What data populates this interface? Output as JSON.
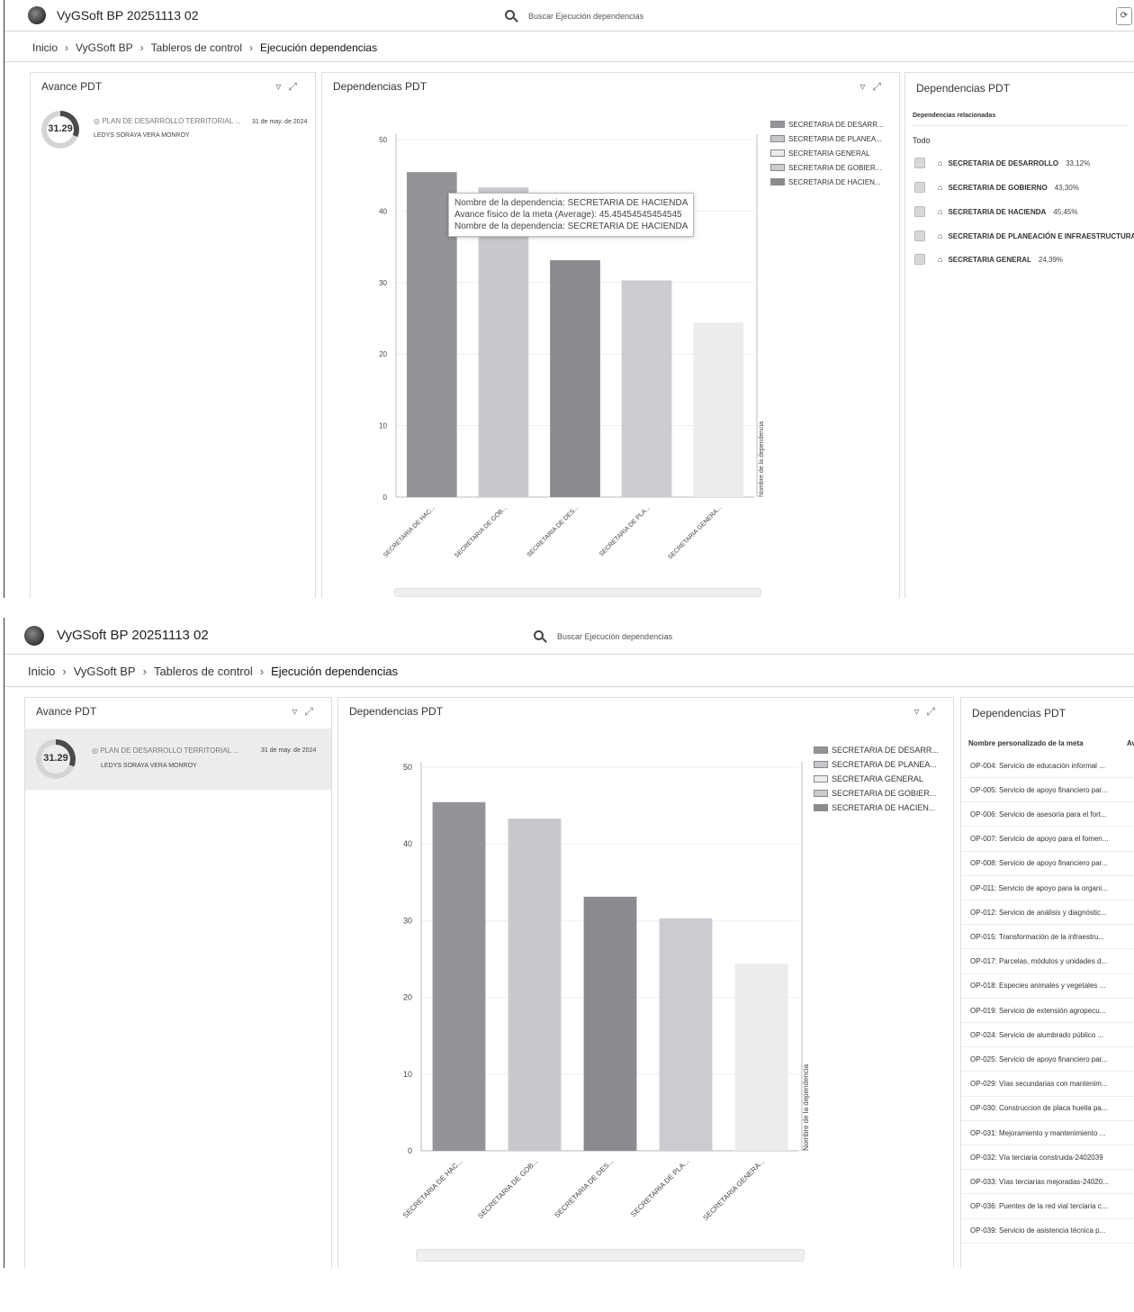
{
  "app": {
    "title": "VyGSoft BP 20251113 02"
  },
  "search": {
    "placeholder": "Buscar Ejecución dependencias"
  },
  "breadcrumb": [
    "Inicio",
    "VyGSoft BP",
    "Tableros de control",
    "Ejecución dependencias"
  ],
  "avance": {
    "title": "Avance PDT",
    "percent": "31.29",
    "percent_value": 31.29,
    "plan": "PLAN DE DESARROLLO TERRITORIAL ...",
    "date": "31 de may. de 2024",
    "person": "LEDYS SORAYA VERA MONROY"
  },
  "chart_panel": {
    "title": "Dependencias PDT"
  },
  "chart_data": {
    "type": "bar",
    "categories": [
      "SECRETARIA DE HAC...",
      "SECRETARIA DE GOB...",
      "SECRETARIA DE DES...",
      "SECRETARIA DE PLA...",
      "SECRETARIA GENERA..."
    ],
    "values": [
      45.45,
      43.3,
      33.12,
      30.3,
      24.39
    ],
    "ylim": [
      0,
      50
    ],
    "yticks": [
      0,
      10,
      20,
      30,
      40,
      50
    ],
    "xlabel": "",
    "ylabel": "Nombre de la dependencia",
    "legend": [
      "SECRETARIA DE DESARR...",
      "SECRETARIA DE PLANEA...",
      "SECRETARIA GENERAL",
      "SECRETARIA DE GOBIER...",
      "SECRETARIA DE HACIEN..."
    ],
    "legend_position": "top-right",
    "colors": [
      "#959397",
      "#c9c8cc",
      "#8c8a8e",
      "#cccbcf",
      "#ececef"
    ],
    "legend_colors": [
      "#959397",
      "#c7c6ca",
      "#ececef",
      "#cccbcf",
      "#8c8a8e"
    ]
  },
  "tooltip": {
    "line1": "Nombre de la dependencia: SECRETARIA DE HACIENDA",
    "line2": "Avance físico de la meta (Average): 45.45454545454545",
    "line3": "Nombre de la dependencia: SECRETARIA DE HACIENDA"
  },
  "dependencias": {
    "title": "Dependencias PDT",
    "related_label": "Dependencias relacionadas",
    "all_label": "Todo",
    "items": [
      {
        "name": "SECRETARIA DE DESARROLLO",
        "pct": "33,12%"
      },
      {
        "name": "SECRETARIA DE GOBIERNO",
        "pct": "43,30%"
      },
      {
        "name": "SECRETARIA DE HACIENDA",
        "pct": "45,45%"
      },
      {
        "name": "SECRETARIA DE PLANEACIÓN E INFRAESTRUCTURA",
        "pct": ""
      },
      {
        "name": "SECRETARIA GENERAL",
        "pct": "24,39%"
      }
    ]
  },
  "metas": {
    "title": "Dependencias PDT",
    "col1": "Nombre personalizado de la meta",
    "col2": "Av",
    "rows": [
      "OP-004: Servicio de educación informal ...",
      "OP-005: Servicio de apoyo financiero par...",
      "OP-006: Servicio de asesoría para el fort...",
      "OP-007: Servicio de apoyo para el fomen...",
      "OP-008: Servicio de apoyo financiero par...",
      "OP-011: Servicio de apoyo para la organi...",
      "OP-012: Servicio de análisis y diagnóstic...",
      "OP-015: Transformación de la infraestru...",
      "OP-017: Parcelas, módulos y unidades d...",
      "OP-018: Especies animales y vegetales ...",
      "OP-019: Servicio de extensión agropecu...",
      "OP-024: Servicio de alumbrado público ...",
      "OP-025: Servicio de apoyo financiero par...",
      "OP-029: Vías secundarias con mantenim...",
      "OP-030: Construccion de placa huella pa...",
      "OP-031: Mejoramiento y mantenimiento ...",
      "OP-032: Vía terciaria construida-2402039",
      "OP-033: Vías terciarias mejoradas-24020...",
      "OP-036: Puentes de la red vial terciaria c...",
      "OP-039: Servicio de asistencia técnica p..."
    ]
  }
}
